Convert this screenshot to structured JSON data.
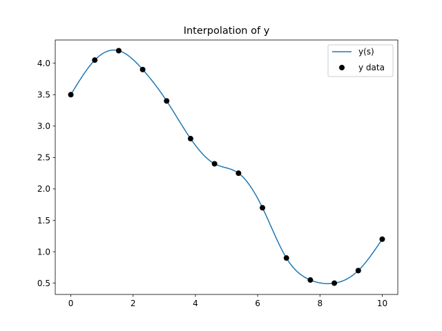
{
  "chart_data": {
    "type": "line",
    "title": "Interpolation of y",
    "xlabel": "",
    "ylabel": "",
    "xlim": [
      -0.5,
      10.5
    ],
    "ylim": [
      0.32,
      4.37
    ],
    "xticks": [
      0,
      2,
      4,
      6,
      8,
      10
    ],
    "yticks": [
      0.5,
      1.0,
      1.5,
      2.0,
      2.5,
      3.0,
      3.5,
      4.0
    ],
    "xtick_labels": [
      "0",
      "2",
      "4",
      "6",
      "8",
      "10"
    ],
    "ytick_labels": [
      "0.5",
      "1.0",
      "1.5",
      "2.0",
      "2.5",
      "3.0",
      "3.5",
      "4.0"
    ],
    "grid": false,
    "legend_position": "top-right",
    "series": [
      {
        "name": "y(s)",
        "kind": "line",
        "color": "#1f77b4",
        "interpolation": "smooth spline through data points"
      },
      {
        "name": "y data",
        "kind": "scatter",
        "color": "#000000",
        "x": [
          0,
          0.769,
          1.538,
          2.308,
          3.077,
          3.846,
          4.615,
          5.385,
          6.154,
          6.923,
          7.692,
          8.462,
          9.231,
          10
        ],
        "y": [
          3.5,
          4.05,
          4.2,
          3.9,
          3.4,
          2.8,
          2.4,
          2.25,
          1.7,
          0.9,
          0.55,
          0.5,
          0.7,
          1.2
        ]
      }
    ]
  }
}
